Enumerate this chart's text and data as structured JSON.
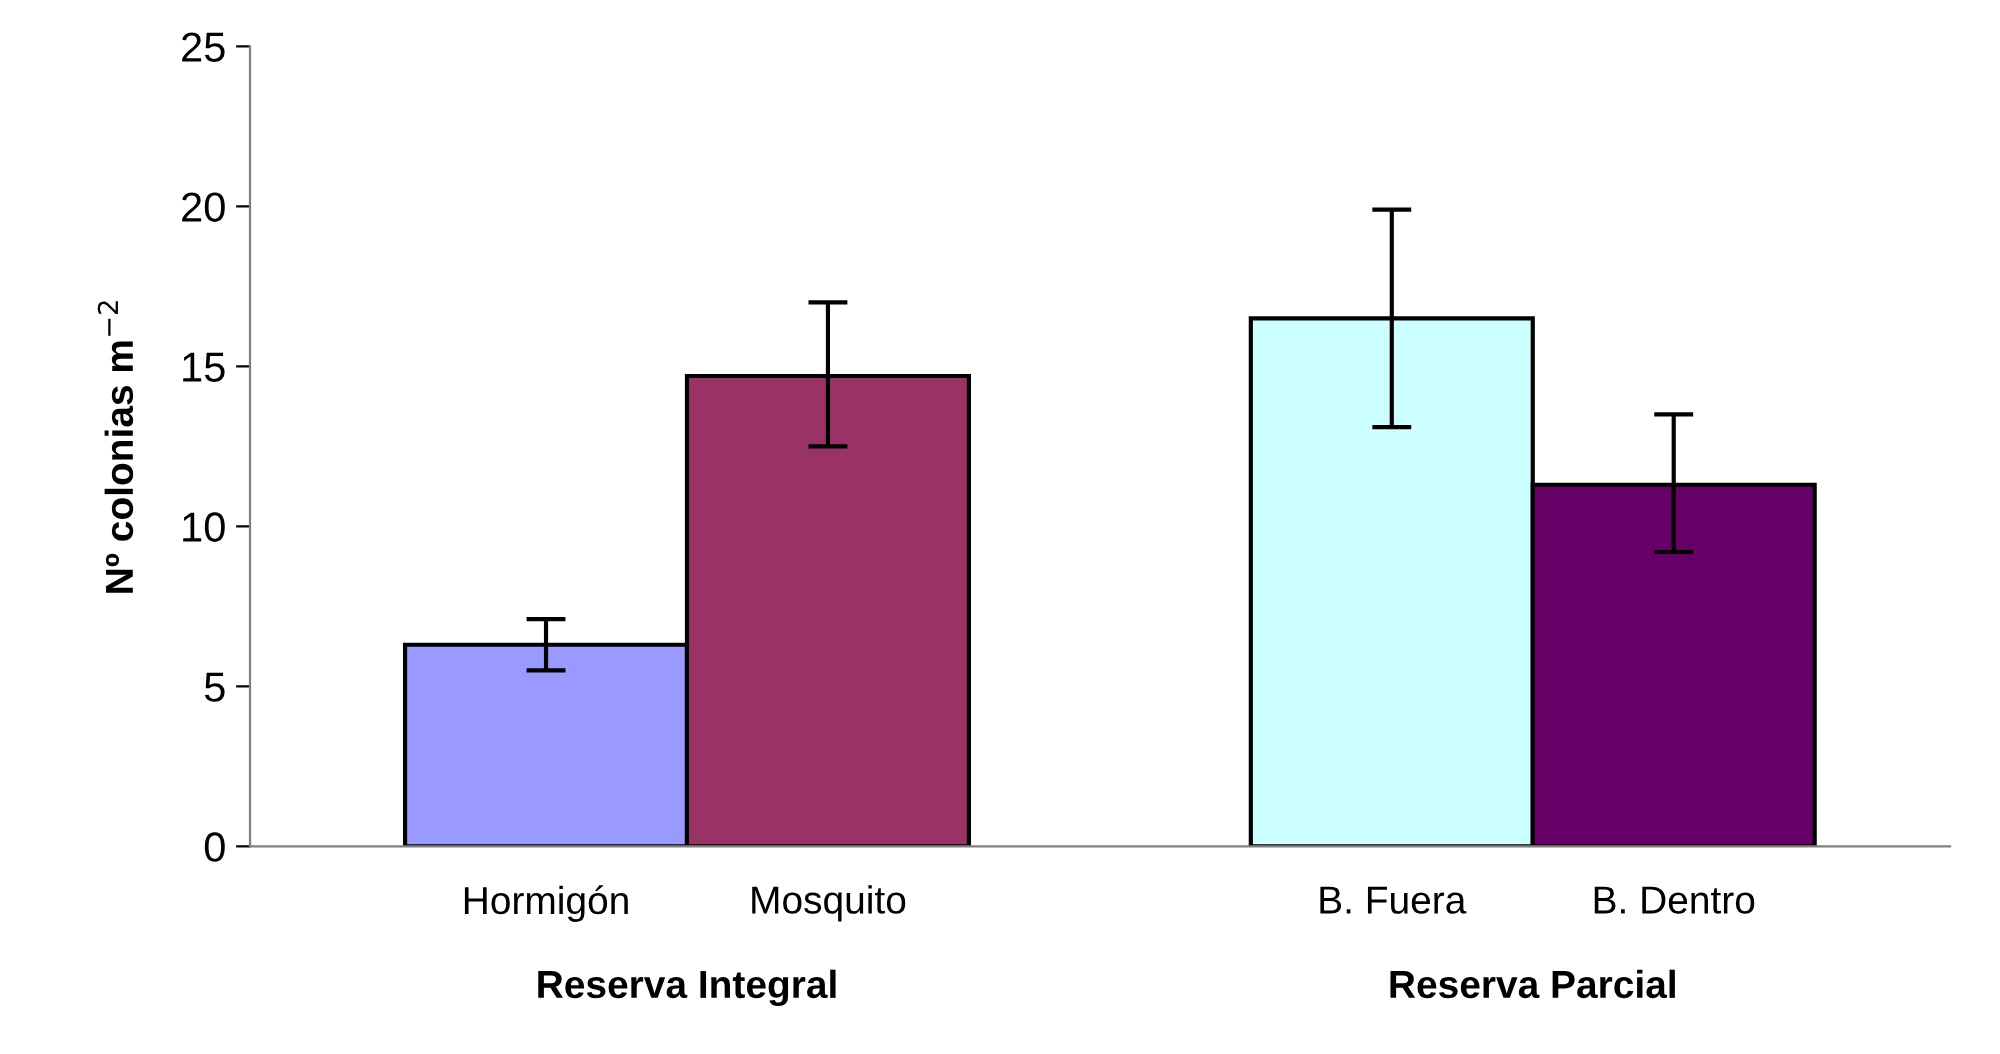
{
  "chart_data": {
    "type": "bar",
    "categories": [
      "Hormigón",
      "Mosquito",
      null,
      "B. Fuera",
      "B. Dentro"
    ],
    "values": [
      6.3,
      14.7,
      null,
      16.5,
      11.3
    ],
    "errors": [
      [
        5.5,
        7.1
      ],
      [
        12.5,
        17.0
      ],
      null,
      [
        13.1,
        19.9
      ],
      [
        9.2,
        13.5
      ]
    ],
    "colors": [
      "#9999ff",
      "#993366",
      "#ffffff",
      "#ccffff",
      "#660066"
    ],
    "ylabel": "Nº colonias m$^{−2}$",
    "ylim": [
      0,
      25
    ],
    "yticks": [
      0,
      5,
      10,
      15,
      20,
      25
    ],
    "annotations": [
      "Reserva Integral",
      "Reserva Parcial"
    ],
    "grid": false,
    "legend": false
  }
}
